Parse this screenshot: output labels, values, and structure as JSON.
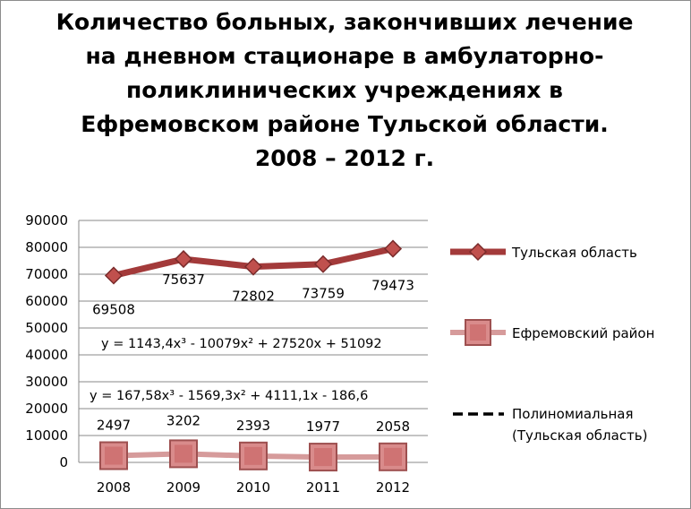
{
  "chart_data": {
    "type": "line",
    "title": "Количество больных, закончивших лечение на дневном стационаре в амбулаторно-поликлинических учреждениях в Ефремовском районе Тульской области. 2008 – 2012 г.",
    "categories": [
      "2008",
      "2009",
      "2010",
      "2011",
      "2012"
    ],
    "ylim": [
      0,
      90000
    ],
    "yticks": [
      "0",
      "10000",
      "20000",
      "30000",
      "40000",
      "50000",
      "60000",
      "70000",
      "80000",
      "90000"
    ],
    "grid": true,
    "legend_position": "right",
    "series": [
      {
        "name": "Тульская область",
        "values": [
          69508,
          75637,
          72802,
          73759,
          79473
        ],
        "labels": [
          "69508",
          "75637",
          "72802",
          "73759",
          "79473"
        ],
        "color": "#a33a3a",
        "marker": "diamond"
      },
      {
        "name": "Ефремовский район",
        "values": [
          2497,
          3202,
          2393,
          1977,
          2058
        ],
        "labels": [
          "2497",
          "3202",
          "2393",
          "1977",
          "2058"
        ],
        "color": "#d69b9b",
        "marker": "square"
      }
    ],
    "trendlines": [
      {
        "name": "Полиномиальная (Тульская область)",
        "equation": "y = 1143,4x³ - 10079x² + 27520x + 51092",
        "color": "#000000",
        "style": "dashed"
      },
      {
        "name": "",
        "equation": "y = 167,58x³ - 1569,3x² + 4111,1x - 186,6",
        "color": "#1f3f7a",
        "style": "dashed"
      }
    ]
  }
}
